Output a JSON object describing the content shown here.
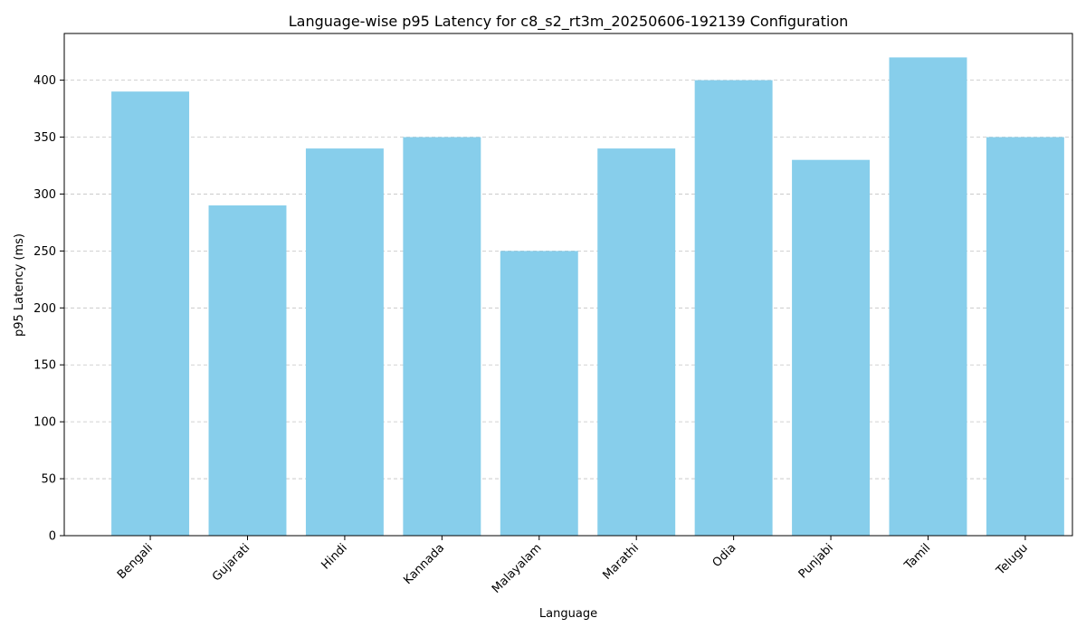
{
  "chart_data": {
    "type": "bar",
    "title": "Language-wise p95 Latency for c8_s2_rt3m_20250606-192139 Configuration",
    "xlabel": "Language",
    "ylabel": "p95 Latency (ms)",
    "categories": [
      "Bengali",
      "Gujarati",
      "Hindi",
      "Kannada",
      "Malayalam",
      "Marathi",
      "Odia",
      "Punjabi",
      "Tamil",
      "Telugu"
    ],
    "values": [
      390,
      290,
      340,
      350,
      250,
      340,
      400,
      330,
      420,
      350
    ],
    "ylim": [
      0,
      441
    ],
    "yticks": [
      0,
      50,
      100,
      150,
      200,
      250,
      300,
      350,
      400
    ],
    "grid": true,
    "grid_axis": "y",
    "bar_color": "#87CEEB",
    "xtick_rotation": "45 degrees"
  }
}
